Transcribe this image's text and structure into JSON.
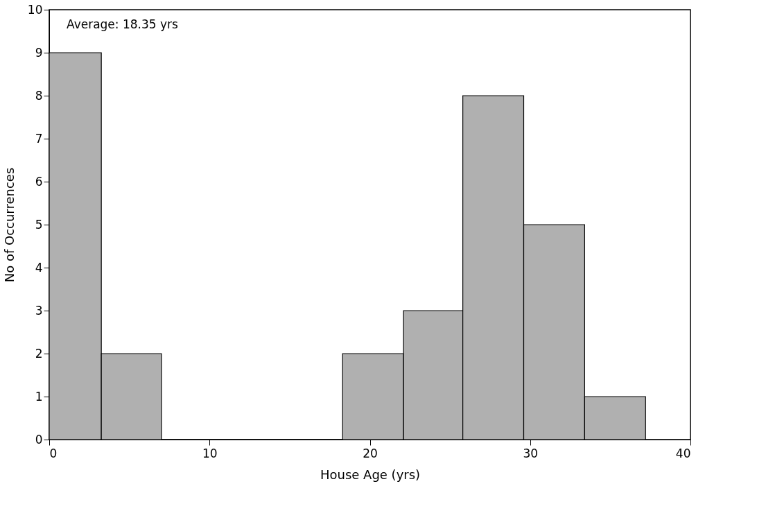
{
  "chart_data": {
    "type": "histogram",
    "xlabel": "House Age (yrs)",
    "ylabel": "No of Occurrences",
    "bins": [
      0,
      3.25,
      7.0,
      18.3,
      22.1,
      25.8,
      29.6,
      33.4,
      37.2
    ],
    "values": [
      9,
      2,
      0,
      2,
      3,
      8,
      5,
      1
    ],
    "color": "#b0b0b0",
    "xlim": [
      0,
      40
    ],
    "xticks": [
      0,
      10,
      20,
      30,
      40
    ],
    "ylim": [
      0,
      10
    ],
    "yticks": [
      0,
      1,
      2,
      3,
      4,
      5,
      6,
      7,
      8,
      9,
      10
    ],
    "grid": false,
    "annotations": [
      "Average: 18.35 yrs"
    ]
  }
}
